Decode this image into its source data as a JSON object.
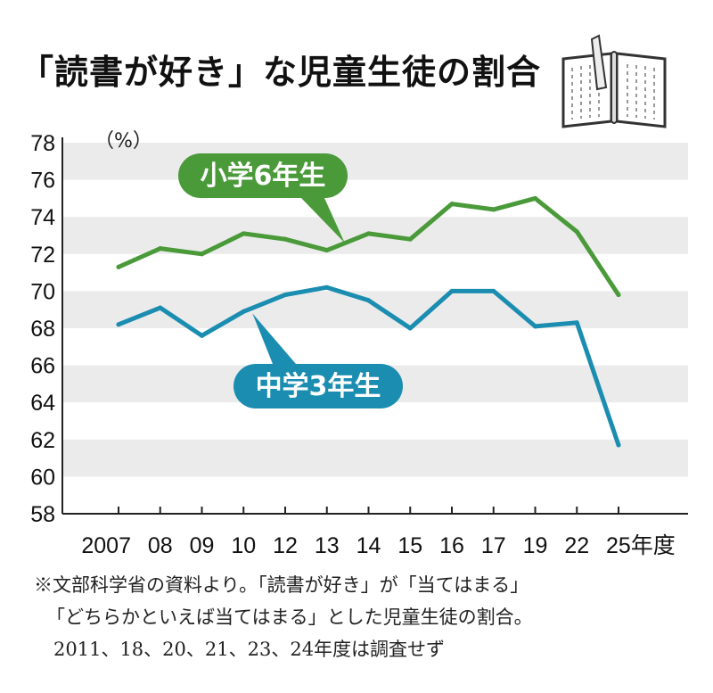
{
  "title": "「読書が好き」な児童生徒の割合",
  "chart_data": {
    "type": "line",
    "unit_label": "（%）",
    "x": [
      "2007",
      "08",
      "09",
      "10",
      "12",
      "13",
      "14",
      "15",
      "16",
      "17",
      "19",
      "22",
      "25年度"
    ],
    "ylim": [
      58,
      78
    ],
    "yticks": [
      58,
      60,
      62,
      64,
      66,
      68,
      70,
      72,
      74,
      76,
      78
    ],
    "grid": "alternating horizontal bands",
    "series": [
      {
        "name": "小学6年生",
        "color": "#4a9a3a",
        "values": [
          71.3,
          72.3,
          72.0,
          73.1,
          72.8,
          72.2,
          73.1,
          72.8,
          74.7,
          74.4,
          75.0,
          73.2,
          69.8
        ]
      },
      {
        "name": "中学3年生",
        "color": "#1b8db0",
        "values": [
          68.2,
          69.1,
          67.6,
          68.9,
          69.8,
          70.2,
          69.5,
          68.0,
          70.0,
          70.0,
          68.1,
          68.3,
          61.7
        ]
      }
    ]
  },
  "note": {
    "line1": "※文部科学省の資料より。「読書が好き」が「当てはまる」",
    "line2": "「どちらかといえば当てはまる」とした児童生徒の割合。",
    "line3": "2011、18、20、21、23、24年度は調査せず"
  }
}
